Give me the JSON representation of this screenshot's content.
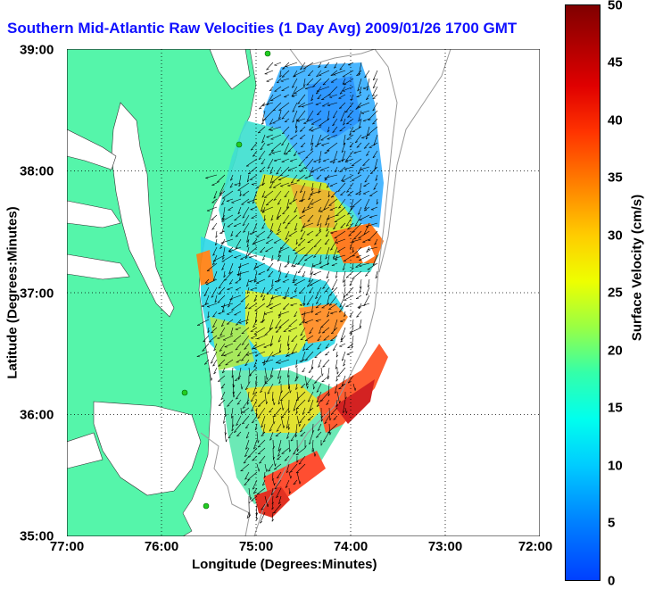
{
  "title": "Southern Mid-Atlantic Raw Velocities (1 Day Avg) 2009/01/26 1700 GMT",
  "x_axis": {
    "label": "Longitude (Degrees:Minutes)",
    "ticks": [
      "77:00",
      "76:00",
      "75:00",
      "74:00",
      "73:00",
      "72:00"
    ],
    "range": [
      -77,
      -72
    ]
  },
  "y_axis": {
    "label": "Latitude (Degrees:Minutes)",
    "ticks": [
      "39:00",
      "38:00",
      "37:00",
      "36:00",
      "35:00"
    ],
    "range": [
      35,
      39
    ]
  },
  "colorbar": {
    "label": "Surface Velocity (cm/s)",
    "ticks": [
      "50",
      "45",
      "40",
      "35",
      "30",
      "25",
      "20",
      "15",
      "10",
      "5",
      "0"
    ],
    "range": [
      0,
      50
    ]
  },
  "colors": {
    "land": "#55f5aa",
    "water": "#ffffff",
    "title": "#1010ff"
  }
}
